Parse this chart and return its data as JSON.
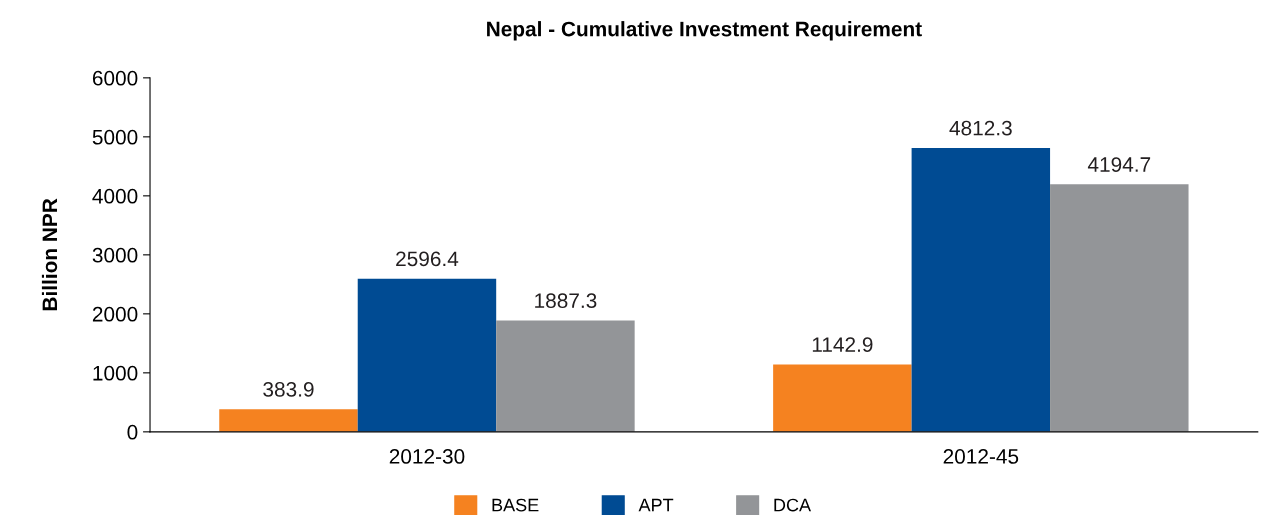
{
  "chart_data": {
    "type": "bar",
    "title": "Nepal - Cumulative Investment Requirement",
    "ylabel": "Billion NPR",
    "categories": [
      "2012-30",
      "2012-45"
    ],
    "series": [
      {
        "name": "BASE",
        "color": "#f58220",
        "values": [
          383.9,
          1142.9
        ]
      },
      {
        "name": "APT",
        "color": "#004b93",
        "values": [
          2596.4,
          4812.3
        ]
      },
      {
        "name": "DCA",
        "color": "#939598",
        "values": [
          1887.3,
          4194.7
        ]
      }
    ],
    "ylim": [
      0,
      6000
    ],
    "yticks": [
      0,
      1000,
      2000,
      3000,
      4000,
      5000,
      6000
    ],
    "grid": false,
    "legend": "bottom",
    "data_labels": true
  }
}
